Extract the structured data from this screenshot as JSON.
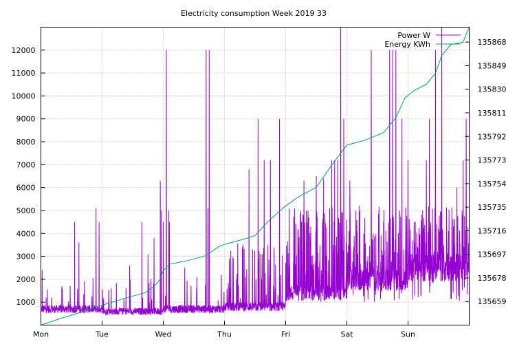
{
  "chart_data": {
    "type": "line",
    "title": "Electricity consumption Week 2019 33",
    "x_axis": {
      "unit": "day",
      "ticks": [
        "Mon",
        "Tue",
        "Wed",
        "Thu",
        "Fri",
        "Sat",
        "Sun"
      ],
      "range_days": [
        0,
        7
      ]
    },
    "y_axis_left": {
      "ticks": [
        1000,
        2000,
        3000,
        4000,
        5000,
        6000,
        7000,
        8000,
        9000,
        10000,
        11000,
        12000
      ],
      "range": [
        0,
        13000
      ]
    },
    "y_axis_right": {
      "ticks": [
        135659,
        135678,
        135697,
        135716,
        135735,
        135754,
        135773,
        135792,
        135811,
        135830,
        135849,
        135868
      ],
      "range": [
        135640,
        135880
      ]
    },
    "grid": true,
    "legend_position": "top-right",
    "colors": {
      "power": "#9400d3",
      "energy": "#009e73",
      "grid": "#a0a0a0",
      "axis": "#000000"
    },
    "series": [
      {
        "name": "Power W",
        "axis": "left",
        "color": "#9400d3",
        "baseline_by_day": [
          700,
          600,
          700,
          800,
          1400,
          2000,
          2500
        ],
        "spikes": [
          {
            "x": 0.02,
            "y": 2400
          },
          {
            "x": 0.35,
            "y": 1600
          },
          {
            "x": 0.55,
            "y": 4500
          },
          {
            "x": 0.62,
            "y": 3600
          },
          {
            "x": 0.9,
            "y": 5100
          },
          {
            "x": 0.95,
            "y": 4500
          },
          {
            "x": 1.15,
            "y": 1600
          },
          {
            "x": 1.45,
            "y": 2600
          },
          {
            "x": 1.65,
            "y": 4500
          },
          {
            "x": 1.75,
            "y": 3100
          },
          {
            "x": 1.85,
            "y": 3800
          },
          {
            "x": 1.95,
            "y": 6300
          },
          {
            "x": 1.97,
            "y": 5000
          },
          {
            "x": 2.0,
            "y": 4500
          },
          {
            "x": 2.05,
            "y": 12000
          },
          {
            "x": 2.09,
            "y": 5000
          },
          {
            "x": 2.1,
            "y": 4500
          },
          {
            "x": 2.35,
            "y": 2500
          },
          {
            "x": 2.55,
            "y": 2100
          },
          {
            "x": 2.7,
            "y": 12000
          },
          {
            "x": 2.73,
            "y": 5100
          },
          {
            "x": 2.75,
            "y": 12000
          },
          {
            "x": 2.95,
            "y": 2200
          },
          {
            "x": 3.4,
            "y": 6800
          },
          {
            "x": 3.55,
            "y": 9000
          },
          {
            "x": 3.65,
            "y": 7200
          },
          {
            "x": 3.75,
            "y": 7200
          },
          {
            "x": 3.9,
            "y": 9000
          },
          {
            "x": 4.3,
            "y": 6300
          },
          {
            "x": 4.5,
            "y": 6500
          },
          {
            "x": 4.62,
            "y": 6400
          },
          {
            "x": 4.75,
            "y": 7200
          },
          {
            "x": 4.8,
            "y": 7200
          },
          {
            "x": 4.85,
            "y": 7200
          },
          {
            "x": 4.9,
            "y": 13000
          },
          {
            "x": 4.95,
            "y": 9000
          },
          {
            "x": 5.05,
            "y": 6300
          },
          {
            "x": 5.2,
            "y": 5200
          },
          {
            "x": 5.4,
            "y": 12000
          },
          {
            "x": 5.6,
            "y": 4500
          },
          {
            "x": 5.7,
            "y": 12000
          },
          {
            "x": 5.75,
            "y": 12000
          },
          {
            "x": 5.8,
            "y": 12000
          },
          {
            "x": 5.9,
            "y": 9000
          },
          {
            "x": 6.0,
            "y": 7200
          },
          {
            "x": 6.1,
            "y": 4500
          },
          {
            "x": 6.3,
            "y": 7200
          },
          {
            "x": 6.35,
            "y": 9000
          },
          {
            "x": 6.45,
            "y": 12000
          },
          {
            "x": 6.55,
            "y": 13000
          },
          {
            "x": 6.8,
            "y": 6000
          },
          {
            "x": 6.9,
            "y": 7200
          },
          {
            "x": 6.95,
            "y": 9000
          }
        ]
      },
      {
        "name": "Energy KWh",
        "axis": "right",
        "color": "#009e73",
        "x": [
          0,
          0.3,
          0.7,
          1.0,
          1.4,
          1.7,
          1.85,
          1.95,
          2.0,
          2.1,
          2.4,
          2.7,
          2.9,
          3.0,
          3.3,
          3.5,
          3.7,
          4.0,
          4.2,
          4.5,
          4.8,
          5.0,
          5.3,
          5.6,
          5.8,
          5.95,
          6.1,
          6.3,
          6.45,
          6.55,
          6.7,
          6.9,
          7.0
        ],
        "values": [
          135640,
          135645,
          135651,
          135656,
          135662,
          135666,
          135671,
          135677,
          135684,
          135689,
          135692,
          135696,
          135703,
          135705,
          135709,
          135712,
          135723,
          135736,
          135743,
          135751,
          135772,
          135785,
          135789,
          135795,
          135807,
          135823,
          135829,
          135834,
          135843,
          135857,
          135866,
          135868,
          135880
        ]
      }
    ]
  }
}
